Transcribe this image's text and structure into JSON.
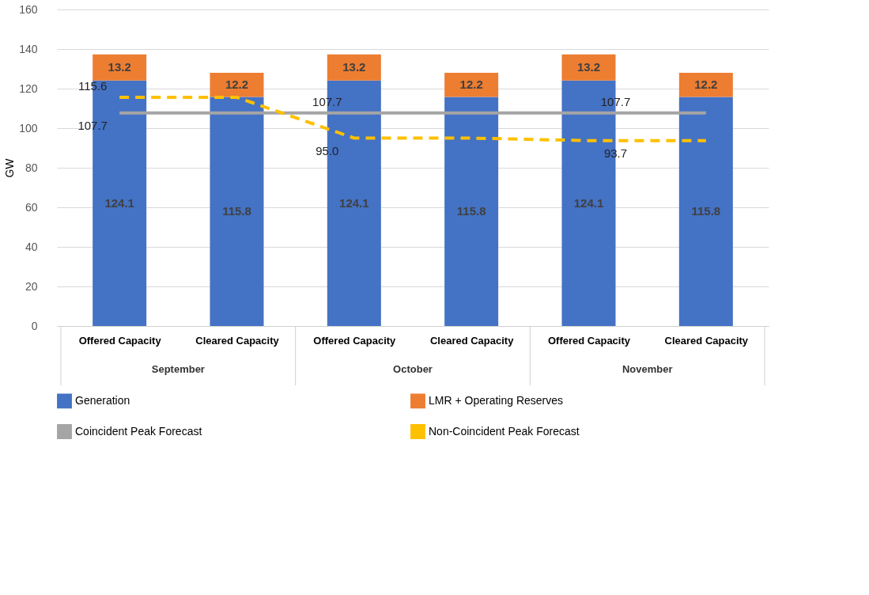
{
  "chart_data": {
    "type": "bar",
    "stacked": true,
    "ylabel": "GW",
    "categories": [
      "Offered Capacity",
      "Cleared Capacity",
      "Offered Capacity",
      "Cleared Capacity",
      "Offered Capacity",
      "Cleared Capacity"
    ],
    "annotations": [
      "September",
      "October",
      "November"
    ],
    "series": [
      {
        "name": "Generation",
        "color": "#4472c4",
        "values": [
          124.1,
          115.8,
          124.1,
          115.8,
          124.1,
          115.8
        ]
      },
      {
        "name": "LMR + Operating Reserves",
        "color": "#ed7d31",
        "values": [
          13.2,
          12.2,
          13.2,
          12.2,
          13.2,
          12.2
        ]
      },
      {
        "name": "Coincident Peak Forecast",
        "type": "line",
        "color": "#a5a5a5",
        "line_style": "solid",
        "values": [
          107.7,
          107.7,
          107.7,
          107.7,
          107.7,
          107.7
        ],
        "value_labels": [
          "107.7",
          null,
          "107.7",
          null,
          "107.7",
          null
        ]
      },
      {
        "name": "Non-Coincident Peak Forecast",
        "type": "line",
        "color": "#ffc000",
        "line_style": "dashed",
        "values": [
          115.6,
          115.6,
          95.0,
          95.0,
          93.7,
          93.7
        ],
        "value_labels": [
          "115.6",
          null,
          "95.0",
          null,
          "93.7",
          null
        ]
      }
    ],
    "data_labels": true,
    "ylim": [
      0,
      160
    ],
    "yticks": [
      0,
      20,
      40,
      60,
      80,
      100,
      120,
      140,
      160
    ],
    "grid": "y",
    "legend": "bottom"
  }
}
